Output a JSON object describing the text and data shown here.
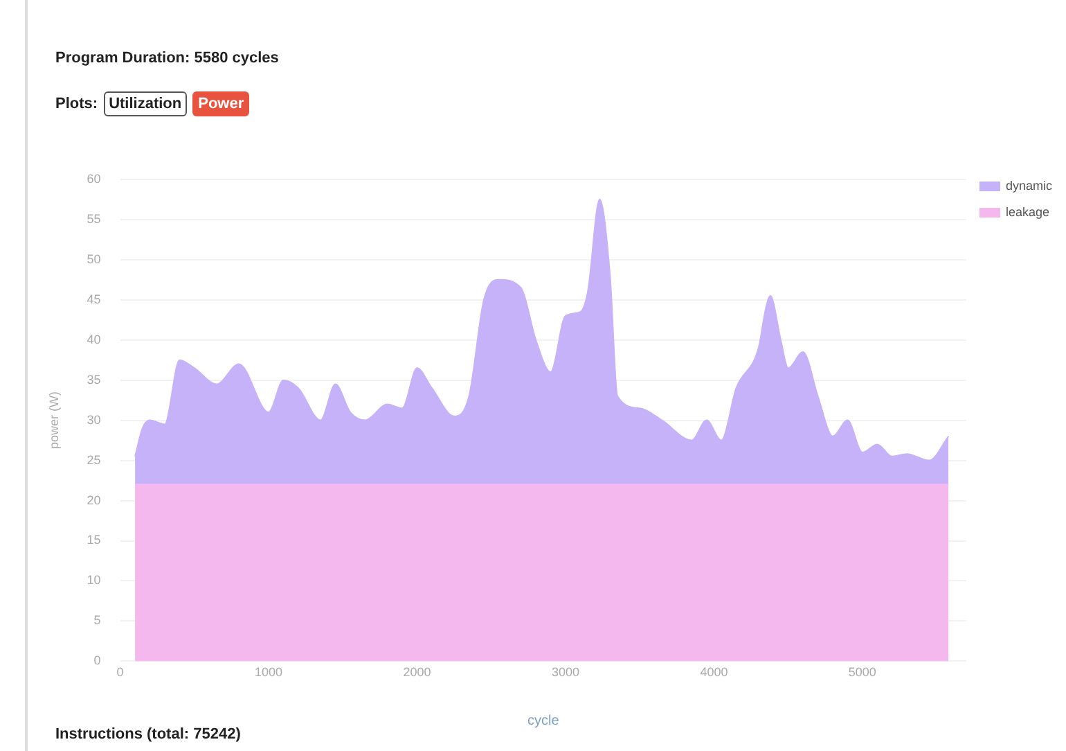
{
  "chart_data": {
    "type": "area",
    "title": "Program Duration: 5580 cycles",
    "annotations": [
      "Plots:",
      "Utilization",
      "Power",
      "Instructions (total: 75242)"
    ],
    "xlabel": "cycle",
    "ylabel": "power (W)",
    "x": [
      100,
      150,
      200,
      300,
      400,
      500,
      650,
      800,
      1000,
      1100,
      1200,
      1350,
      1450,
      1550,
      1650,
      1800,
      1900,
      2000,
      2100,
      2250,
      2350,
      2450,
      2550,
      2700,
      2800,
      2900,
      3000,
      3100,
      3150,
      3230,
      3300,
      3350,
      3500,
      3650,
      3850,
      3950,
      4050,
      4150,
      4300,
      4350,
      4380,
      4450,
      4500,
      4600,
      4700,
      4800,
      4900,
      5000,
      5100,
      5200,
      5300,
      5450,
      5580
    ],
    "stacked": true,
    "series": [
      {
        "name": "leakage",
        "color": "#f4b8ee",
        "values": [
          22,
          22,
          22,
          22,
          22,
          22,
          22,
          22,
          22,
          22,
          22,
          22,
          22,
          22,
          22,
          22,
          22,
          22,
          22,
          22,
          22,
          22,
          22,
          22,
          22,
          22,
          22,
          22,
          22,
          22,
          22,
          22,
          22,
          22,
          22,
          22,
          22,
          22,
          22,
          22,
          22,
          22,
          22,
          22,
          22,
          22,
          22,
          22,
          22,
          22,
          22,
          22,
          22
        ]
      },
      {
        "name": "dynamic",
        "color": "#c6b2f9",
        "values": [
          3.5,
          7,
          8,
          7.5,
          15.5,
          14.5,
          12.5,
          15,
          9,
          13,
          12,
          8,
          12.5,
          9,
          8,
          10,
          9.5,
          14.5,
          12,
          8.5,
          11,
          23,
          25.5,
          24.5,
          18,
          14,
          21,
          21.5,
          24,
          35.5,
          26,
          11,
          9.5,
          8,
          5.5,
          8,
          5.5,
          12,
          17,
          22,
          23.5,
          18,
          14.5,
          16.5,
          11,
          6,
          8,
          4,
          5,
          3.5,
          3.8,
          3,
          6
        ]
      }
    ],
    "xlim": [
      0,
      5700
    ],
    "xticks": [
      0,
      1000,
      2000,
      3000,
      4000,
      5000
    ],
    "ylim": [
      0,
      60
    ],
    "yticks": [
      0,
      5,
      10,
      15,
      20,
      25,
      30,
      35,
      40,
      45,
      50,
      55,
      60
    ],
    "grid": "y",
    "legend": "top right"
  }
}
